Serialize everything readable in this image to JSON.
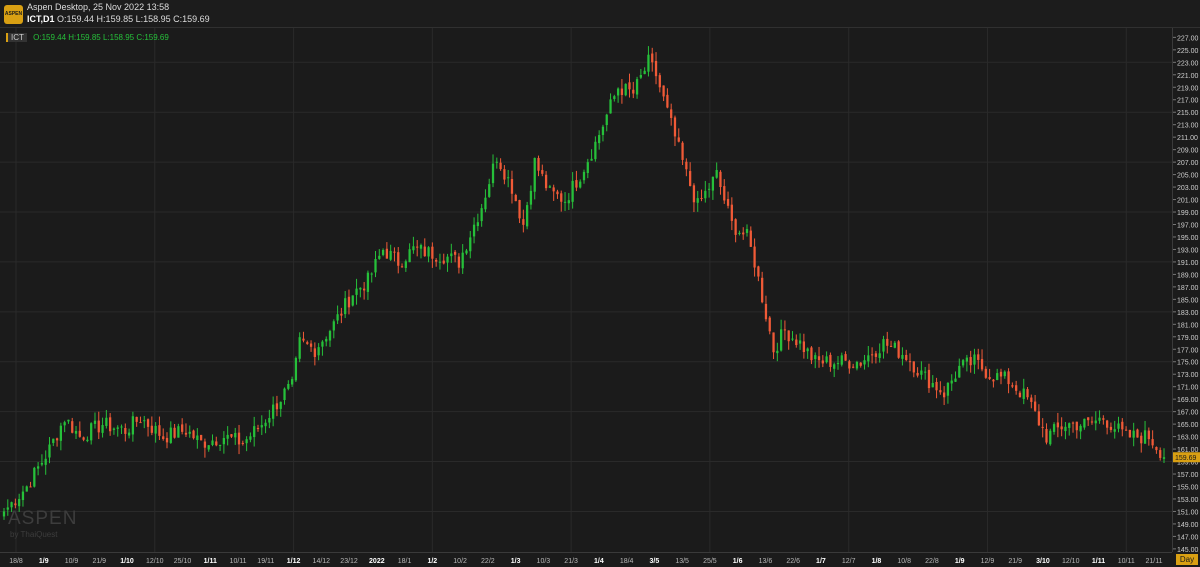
{
  "window": {
    "title": "Aspen Desktop, 25 Nov 2022 13:58",
    "app_logo": "ASPEN"
  },
  "symbol_line": {
    "symbol": "ICT,D1",
    "ohlc": "O:159.44 H:159.85 L:158.95 C:159.69"
  },
  "legend": {
    "tag": "ICT",
    "ohlc": "O:159.44 H:159.85 L:158.95 C:159.69"
  },
  "watermark": {
    "brand": "ASPEN",
    "sub": "by ThaiQuest"
  },
  "timeframe_label": "Day",
  "last_price_label": "159.69",
  "colors": {
    "up": "#26c03a",
    "down": "#f05a37",
    "background": "#1b1b1b",
    "grid": "#2a2a2a",
    "accent": "#d9a013"
  },
  "chart_data": {
    "type": "candlestick",
    "title": "",
    "price_range": [
      144.5,
      228.5
    ],
    "price_ticks": [
      "145.00",
      "147.00",
      "149.00",
      "151.00",
      "153.00",
      "155.00",
      "157.00",
      "159.00",
      "161.00",
      "163.00",
      "165.00",
      "167.00",
      "169.00",
      "171.00",
      "173.00",
      "175.00",
      "177.00",
      "179.00",
      "181.00",
      "183.00",
      "185.00",
      "187.00",
      "189.00",
      "191.00",
      "193.00",
      "195.00",
      "197.00",
      "199.00",
      "201.00",
      "203.00",
      "205.00",
      "207.00",
      "209.00",
      "211.00",
      "213.00",
      "215.00",
      "217.00",
      "219.00",
      "221.00",
      "223.00",
      "225.00",
      "227.00"
    ],
    "time_ticks": [
      "18/8",
      "1/9",
      "10/9",
      "21/9",
      "1/10",
      "12/10",
      "25/10",
      "1/11",
      "10/11",
      "19/11",
      "1/12",
      "14/12",
      "23/12",
      "2022",
      "18/1",
      "1/2",
      "10/2",
      "22/2",
      "1/3",
      "10/3",
      "21/3",
      "1/4",
      "18/4",
      "3/5",
      "13/5",
      "25/5",
      "1/6",
      "13/6",
      "22/6",
      "1/7",
      "12/7",
      "1/8",
      "10/8",
      "22/8",
      "1/9",
      "12/9",
      "21/9",
      "3/10",
      "12/10",
      "1/11",
      "10/11",
      "21/11"
    ],
    "bold_time_ticks": [
      "1/9",
      "1/10",
      "1/11",
      "1/12",
      "2022",
      "1/2",
      "1/3",
      "1/4",
      "3/5",
      "1/6",
      "1/7",
      "1/8",
      "1/9",
      "3/10",
      "1/11"
    ],
    "last_close": 159.69,
    "anchor_closes": [
      [
        0,
        151
      ],
      [
        6,
        155
      ],
      [
        12,
        161
      ],
      [
        16,
        166
      ],
      [
        20,
        163
      ],
      [
        26,
        165
      ],
      [
        32,
        164
      ],
      [
        36,
        166
      ],
      [
        42,
        163
      ],
      [
        48,
        164
      ],
      [
        52,
        162
      ],
      [
        58,
        163
      ],
      [
        63,
        162
      ],
      [
        68,
        165
      ],
      [
        74,
        170
      ],
      [
        76,
        171
      ],
      [
        78,
        178
      ],
      [
        82,
        177
      ],
      [
        87,
        181
      ],
      [
        92,
        186
      ],
      [
        96,
        188
      ],
      [
        100,
        193
      ],
      [
        104,
        191
      ],
      [
        108,
        193
      ],
      [
        116,
        192
      ],
      [
        120,
        191
      ],
      [
        126,
        200
      ],
      [
        130,
        208
      ],
      [
        134,
        203
      ],
      [
        137,
        197
      ],
      [
        140,
        207
      ],
      [
        144,
        202
      ],
      [
        148,
        201
      ],
      [
        152,
        205
      ],
      [
        156,
        210
      ],
      [
        162,
        219
      ],
      [
        166,
        218
      ],
      [
        170,
        223
      ],
      [
        172,
        221
      ],
      [
        176,
        213
      ],
      [
        180,
        205
      ],
      [
        183,
        200
      ],
      [
        188,
        205
      ],
      [
        192,
        197
      ],
      [
        196,
        195
      ],
      [
        198,
        191
      ],
      [
        203,
        177
      ],
      [
        206,
        180
      ],
      [
        210,
        178
      ],
      [
        214,
        175
      ],
      [
        220,
        175
      ],
      [
        226,
        175
      ],
      [
        232,
        178
      ],
      [
        238,
        176
      ],
      [
        242,
        173
      ],
      [
        248,
        170
      ],
      [
        252,
        174
      ],
      [
        256,
        175
      ],
      [
        260,
        173
      ],
      [
        265,
        172
      ],
      [
        270,
        169
      ],
      [
        275,
        163
      ],
      [
        280,
        165
      ],
      [
        286,
        165
      ],
      [
        290,
        166
      ],
      [
        296,
        163
      ],
      [
        302,
        163
      ],
      [
        306,
        160
      ]
    ]
  }
}
